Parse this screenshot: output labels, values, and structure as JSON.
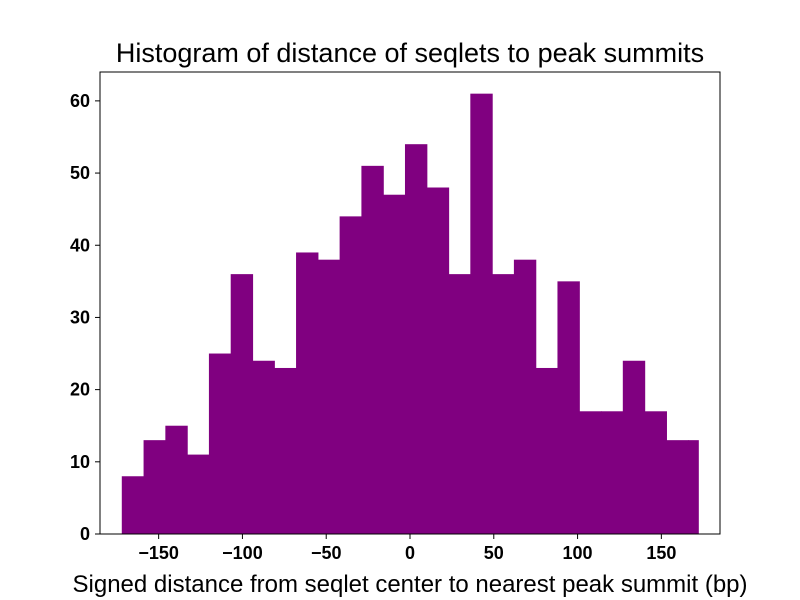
{
  "chart_data": {
    "type": "bar",
    "title": "Histogram of distance of seqlets to peak summits",
    "xlabel": "Signed distance from seqlet center to nearest peak summit (bp)",
    "ylabel": "",
    "xlim": [
      -185,
      185
    ],
    "ylim": [
      0,
      64
    ],
    "grid": false,
    "bar_color": "#800080",
    "bin_edges": [
      -172,
      -159,
      -146,
      -133,
      -120,
      -107,
      -94,
      -81,
      -68,
      -55,
      -42,
      -29,
      -16,
      -3,
      10,
      23,
      36,
      49,
      62,
      75,
      88,
      101,
      114,
      127,
      140,
      153,
      166,
      172
    ],
    "values": [
      8,
      13,
      15,
      11,
      25,
      36,
      24,
      23,
      39,
      38,
      44,
      51,
      47,
      54,
      48,
      36,
      61,
      36,
      38,
      23,
      35,
      17,
      17,
      24,
      17,
      13,
      13
    ],
    "xticks": [
      -150,
      -100,
      -50,
      0,
      50,
      100,
      150
    ],
    "xtick_labels": [
      "−150",
      "−100",
      "−50",
      "0",
      "50",
      "100",
      "150"
    ],
    "yticks": [
      0,
      10,
      20,
      30,
      40,
      50,
      60
    ],
    "ytick_labels": [
      "0",
      "10",
      "20",
      "30",
      "40",
      "50",
      "60"
    ]
  }
}
